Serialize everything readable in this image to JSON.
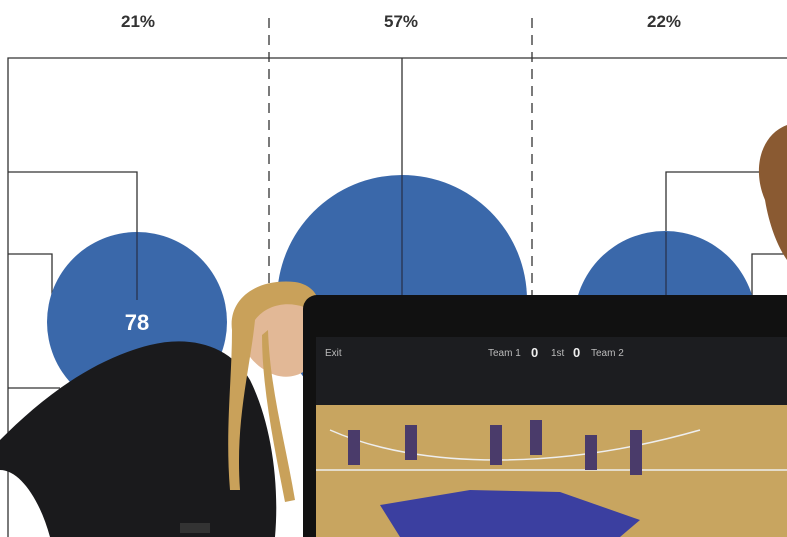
{
  "zones": [
    {
      "label": "21%"
    },
    {
      "label": "57%"
    },
    {
      "label": "22%"
    }
  ],
  "circle_label": "78",
  "tablet": {
    "exit": "Exit",
    "team1": "Team 1",
    "score1": "0",
    "period": "1st",
    "score2": "0",
    "team2": "Team 2"
  }
}
